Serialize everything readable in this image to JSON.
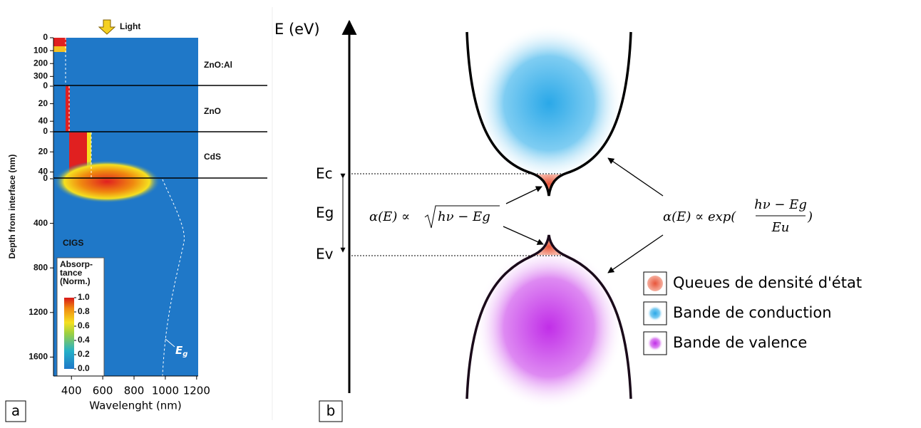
{
  "panel_a": {
    "label": "a",
    "light": "Light",
    "y_title": "Depth from interface (nm)",
    "x_title": "Wavelenght (nm)",
    "x_ticks": [
      400,
      600,
      800,
      1000,
      1200
    ],
    "xlim": [
      285,
      1210
    ],
    "layers": [
      {
        "name": "ZnO:Al",
        "ticks": [
          0,
          100,
          200,
          300
        ],
        "ylim": [
          0,
          370
        ]
      },
      {
        "name": "ZnO",
        "ticks": [
          0,
          20,
          40
        ],
        "ylim": [
          0,
          52
        ]
      },
      {
        "name": "CdS",
        "ticks": [
          0,
          20,
          40
        ],
        "ylim": [
          0,
          46
        ]
      },
      {
        "name": "CIGS",
        "ticks": [
          0,
          400,
          800,
          1200,
          1600
        ],
        "ylim": [
          0,
          1770
        ]
      }
    ],
    "eg": "E",
    "eg_sub": "g",
    "colorbar": {
      "title": [
        "Absorp-",
        "tance",
        "(Norm.)"
      ],
      "lim": [
        0,
        1
      ],
      "ticks": [
        {
          "value": 1,
          "label": "1.0"
        },
        {
          "value": 0.8,
          "label": "0.8"
        },
        {
          "value": 0.6,
          "label": "0.6"
        },
        {
          "value": 0.4,
          "label": "0.4"
        },
        {
          "value": 0.2,
          "label": "0.2"
        },
        {
          "value": 0,
          "label": "0.0"
        }
      ]
    }
  },
  "panel_b": {
    "label": "b",
    "axis": "E (eV)",
    "levels": [
      "Ec",
      "Eg",
      "Ev"
    ],
    "eq_left": {
      "lhs": "α(E) ∝ ",
      "root": "hν − Eg"
    },
    "eq_right": {
      "lhs": "α(E) ∝ exp(",
      "num": "hν − Eg",
      "den": "Eu",
      "close": ")"
    },
    "legend": [
      "Queues de densité d'état",
      "Bande de conduction",
      "Bande de valence"
    ]
  }
}
